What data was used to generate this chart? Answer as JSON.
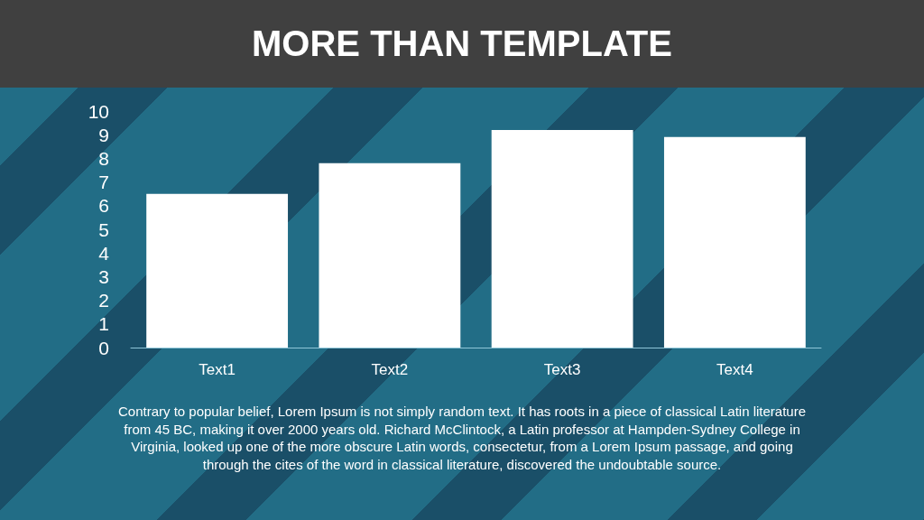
{
  "chart_data": {
    "type": "bar",
    "title": "MORE THAN TEMPLATE",
    "categories": [
      "Text1",
      "Text2",
      "Text3",
      "Text4"
    ],
    "values": [
      6.5,
      7.8,
      9.2,
      8.9
    ],
    "color": "#ffffff",
    "ylim": [
      0,
      10
    ],
    "yticks": [
      0,
      1,
      2,
      3,
      4,
      5,
      6,
      7,
      8,
      9,
      10
    ],
    "grid": false,
    "annotations": [
      "Contrary to popular belief, Lorem Ipsum is not simply random text. It has roots in a piece of classical Latin literature from 45 BC, making it over 2000 years old. Richard McClintock, a Latin professor at Hampden-Sydney College in Virginia, looked up one of the more obscure Latin words, consectetur, from a Lorem Ipsum passage, and going through the cites of the word in classical literature, discovered the undoubtable source."
    ]
  }
}
